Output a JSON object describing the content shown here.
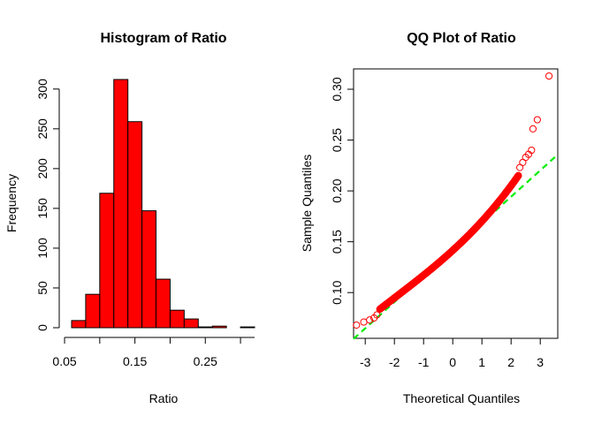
{
  "chart_data": [
    {
      "type": "bar",
      "title": "Histogram of Ratio",
      "xlabel": "Ratio",
      "ylabel": "Frequency",
      "bin_edges": [
        0.06,
        0.08,
        0.1,
        0.12,
        0.14,
        0.16,
        0.18,
        0.2,
        0.22,
        0.24,
        0.26,
        0.28,
        0.3,
        0.32
      ],
      "values": [
        9,
        42,
        169,
        312,
        259,
        147,
        61,
        22,
        11,
        1,
        2,
        0,
        1
      ],
      "xlim": [
        0.06,
        0.32
      ],
      "ylim": [
        0,
        312
      ],
      "x_ticks": [
        0.05,
        0.15,
        0.25
      ],
      "y_ticks": [
        0,
        50,
        100,
        150,
        200,
        250,
        300
      ],
      "bar_fill": "#ff0000",
      "bar_stroke": "#000000"
    },
    {
      "type": "scatter",
      "title": "QQ Plot of Ratio",
      "xlabel": "Theoretical Quantiles",
      "ylabel": "Sample Quantiles",
      "xlim": [
        -3.4,
        3.6
      ],
      "ylim": [
        0.055,
        0.32
      ],
      "x_ticks": [
        -3,
        -2,
        -1,
        0,
        1,
        2,
        3
      ],
      "y_ticks": [
        0.1,
        0.15,
        0.2,
        0.25,
        0.3
      ],
      "point_color": "#ff0000",
      "line_color": "#00ee00",
      "qq_line": {
        "intercept": 0.1425,
        "slope": 0.0259
      },
      "outer_points": [
        {
          "x": -3.3,
          "y": 0.068
        },
        {
          "x": -3.05,
          "y": 0.071
        },
        {
          "x": -2.85,
          "y": 0.073
        },
        {
          "x": -2.7,
          "y": 0.075
        },
        {
          "x": -2.6,
          "y": 0.078
        },
        {
          "x": 2.3,
          "y": 0.223
        },
        {
          "x": 2.4,
          "y": 0.228
        },
        {
          "x": 2.5,
          "y": 0.233
        },
        {
          "x": 2.6,
          "y": 0.236
        },
        {
          "x": 2.7,
          "y": 0.24
        },
        {
          "x": 2.75,
          "y": 0.261
        },
        {
          "x": 2.9,
          "y": 0.27
        },
        {
          "x": 3.3,
          "y": 0.313
        }
      ],
      "body_segment": {
        "x_from": -2.5,
        "x_to": 2.25,
        "n": 400
      }
    }
  ]
}
